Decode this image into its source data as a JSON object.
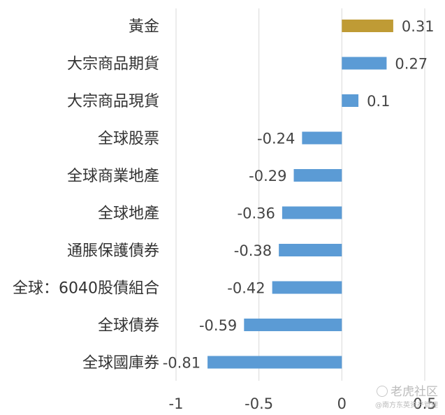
{
  "chart_data": {
    "type": "bar",
    "orientation": "horizontal",
    "categories": [
      "黃金",
      "大宗商品期貨",
      "大宗商品現貨",
      "全球股票",
      "全球商業地產",
      "全球地產",
      "通脹保護債券",
      "全球：6040股債組合",
      "全球債券",
      "全球國庫券"
    ],
    "values": [
      0.31,
      0.27,
      0.1,
      -0.24,
      -0.29,
      -0.36,
      -0.38,
      -0.42,
      -0.59,
      -0.81
    ],
    "value_labels": [
      "0.31",
      "0.27",
      "0.1",
      "-0.24",
      "-0.29",
      "-0.36",
      "-0.38",
      "-0.42",
      "-0.59",
      "-0.81"
    ],
    "xlim": [
      -1,
      0.5
    ],
    "x_ticks": [
      -1,
      -0.5,
      0,
      0.5
    ],
    "x_tick_labels": [
      "-1",
      "-0.5",
      "0",
      "0.5"
    ],
    "title": "",
    "xlabel": "",
    "ylabel": "",
    "grid": "vertical",
    "legend": "none",
    "colors": {
      "highlight": "#BF9B35",
      "default": "#5B9BD5",
      "grid": "#D9D9D9"
    },
    "highlight_index": 0
  },
  "watermark": {
    "main": "老虎社区",
    "sub": "@南方东英资产管理"
  }
}
